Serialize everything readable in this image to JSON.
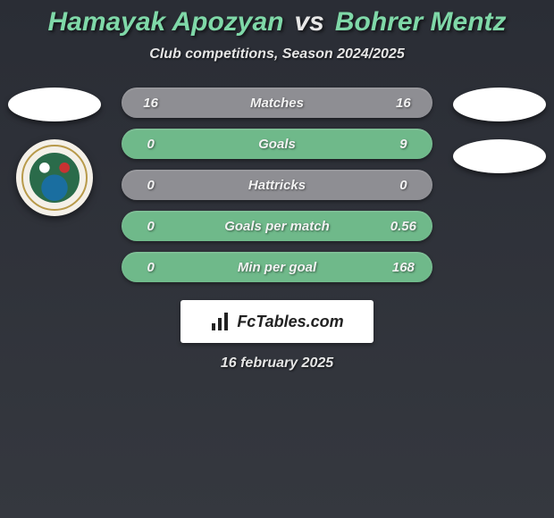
{
  "header": {
    "player1": "Hamayak Apozyan",
    "vs": "vs",
    "player2": "Bohrer Mentz",
    "subtitle": "Club competitions, Season 2024/2025"
  },
  "colors": {
    "player_name": "#7fd8a8",
    "vs_text": "#e8e8e8",
    "subtitle_text": "#e5e5e5",
    "bg_gradient_top": "#2a2d35",
    "bg_gradient_bottom": "#35383f",
    "stat_text": "#f2f2f2"
  },
  "stats": [
    {
      "label": "Matches",
      "p1": "16",
      "p2": "16",
      "bg_from": "#8e8e93",
      "bg_to": "#8e8e93"
    },
    {
      "label": "Goals",
      "p1": "0",
      "p2": "9",
      "bg_from": "#6fb98a",
      "bg_to": "#6fb98a"
    },
    {
      "label": "Hattricks",
      "p1": "0",
      "p2": "0",
      "bg_from": "#8e8e93",
      "bg_to": "#8e8e93"
    },
    {
      "label": "Goals per match",
      "p1": "0",
      "p2": "0.56",
      "bg_from": "#6fb98a",
      "bg_to": "#6fb98a"
    },
    {
      "label": "Min per goal",
      "p1": "0",
      "p2": "168",
      "bg_from": "#6fb98a",
      "bg_to": "#6fb98a"
    }
  ],
  "side": {
    "left_flag_bg": "#ffffff",
    "right_flag_bg": "#ffffff",
    "crest_bg": "#f4f0e8"
  },
  "footer": {
    "brand": "FcTables.com",
    "date": "16 february 2025"
  }
}
